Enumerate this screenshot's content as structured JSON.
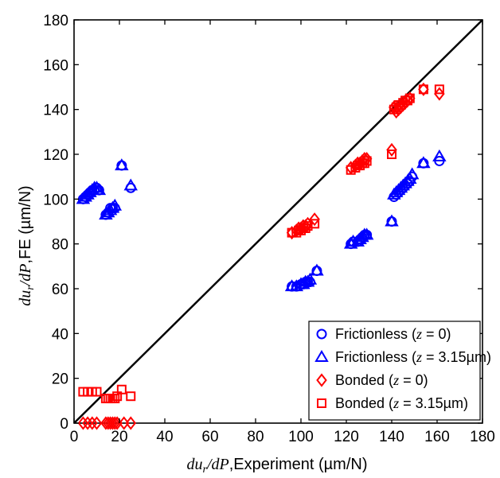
{
  "chart_data": {
    "type": "scatter",
    "xlabel": "duᵣ/dP,Experiment (µm/N)",
    "ylabel": "duᵣ/dP,FE (µm/N)",
    "xlim": [
      0,
      180
    ],
    "ylim": [
      0,
      180
    ],
    "xticks": [
      0,
      20,
      40,
      60,
      80,
      100,
      120,
      140,
      160,
      180
    ],
    "yticks": [
      0,
      20,
      40,
      60,
      80,
      100,
      120,
      140,
      160,
      180
    ],
    "grid": false,
    "legend_position": "bottom-right",
    "reference_line": {
      "x": [
        0,
        180
      ],
      "y": [
        0,
        180
      ],
      "color": "#000000"
    },
    "series": [
      {
        "name": "Frictionless (z = 0)",
        "marker": "circle",
        "color": "#0000ff",
        "points": [
          [
            4,
            100
          ],
          [
            5,
            101
          ],
          [
            6,
            102
          ],
          [
            7,
            103
          ],
          [
            8,
            104
          ],
          [
            9,
            104
          ],
          [
            10,
            105
          ],
          [
            11,
            104
          ],
          [
            14,
            93
          ],
          [
            15,
            94
          ],
          [
            16,
            96
          ],
          [
            17,
            96
          ],
          [
            18,
            96
          ],
          [
            21,
            115
          ],
          [
            25,
            105
          ],
          [
            96,
            61
          ],
          [
            98,
            61
          ],
          [
            100,
            62
          ],
          [
            101,
            62
          ],
          [
            102,
            63
          ],
          [
            103,
            63
          ],
          [
            104,
            63
          ],
          [
            107,
            68
          ],
          [
            122,
            80
          ],
          [
            123,
            81
          ],
          [
            125,
            81
          ],
          [
            126,
            82
          ],
          [
            127,
            83
          ],
          [
            128,
            84
          ],
          [
            129,
            84
          ],
          [
            140,
            90
          ],
          [
            141,
            101
          ],
          [
            142,
            102
          ],
          [
            143,
            103
          ],
          [
            144,
            104
          ],
          [
            145,
            105
          ],
          [
            146,
            106
          ],
          [
            147,
            107
          ],
          [
            148,
            108
          ],
          [
            149,
            110
          ],
          [
            154,
            116
          ],
          [
            161,
            117
          ]
        ]
      },
      {
        "name": "Frictionless (z = 3.15µm)",
        "marker": "triangle",
        "color": "#0000ff",
        "points": [
          [
            4,
            100
          ],
          [
            5,
            101
          ],
          [
            6,
            102
          ],
          [
            7,
            103
          ],
          [
            8,
            104
          ],
          [
            9,
            105
          ],
          [
            10,
            105
          ],
          [
            11,
            104
          ],
          [
            14,
            93
          ],
          [
            15,
            94
          ],
          [
            16,
            95
          ],
          [
            17,
            96
          ],
          [
            18,
            97
          ],
          [
            21,
            115
          ],
          [
            25,
            106
          ],
          [
            96,
            61
          ],
          [
            98,
            61
          ],
          [
            100,
            62
          ],
          [
            101,
            62
          ],
          [
            102,
            63
          ],
          [
            103,
            63
          ],
          [
            104,
            64
          ],
          [
            107,
            68
          ],
          [
            122,
            80
          ],
          [
            123,
            81
          ],
          [
            125,
            81
          ],
          [
            126,
            82
          ],
          [
            127,
            83
          ],
          [
            128,
            84
          ],
          [
            129,
            84
          ],
          [
            140,
            90
          ],
          [
            141,
            102
          ],
          [
            142,
            103
          ],
          [
            143,
            104
          ],
          [
            144,
            105
          ],
          [
            145,
            106
          ],
          [
            146,
            107
          ],
          [
            147,
            108
          ],
          [
            148,
            109
          ],
          [
            149,
            111
          ],
          [
            154,
            116
          ],
          [
            161,
            119
          ]
        ]
      },
      {
        "name": "Bonded (z = 0)",
        "marker": "diamond",
        "color": "#ff0000",
        "points": [
          [
            4,
            0
          ],
          [
            6,
            0
          ],
          [
            8,
            0
          ],
          [
            10,
            0
          ],
          [
            14,
            0
          ],
          [
            15,
            0
          ],
          [
            16,
            0
          ],
          [
            17,
            0
          ],
          [
            18,
            0
          ],
          [
            19,
            0
          ],
          [
            22,
            0
          ],
          [
            25,
            0
          ],
          [
            96,
            85
          ],
          [
            98,
            86
          ],
          [
            99,
            87
          ],
          [
            100,
            87
          ],
          [
            101,
            88
          ],
          [
            102,
            88
          ],
          [
            103,
            89
          ],
          [
            106,
            91
          ],
          [
            122,
            114
          ],
          [
            124,
            115
          ],
          [
            125,
            116
          ],
          [
            126,
            116
          ],
          [
            127,
            117
          ],
          [
            128,
            118
          ],
          [
            129,
            118
          ],
          [
            140,
            122
          ],
          [
            141,
            141
          ],
          [
            142,
            139
          ],
          [
            143,
            140
          ],
          [
            144,
            141
          ],
          [
            145,
            142
          ],
          [
            146,
            143
          ],
          [
            147,
            144
          ],
          [
            148,
            145
          ],
          [
            154,
            149
          ],
          [
            161,
            147
          ]
        ]
      },
      {
        "name": "Bonded (z = 3.15µm)",
        "marker": "square",
        "color": "#ff0000",
        "points": [
          [
            4,
            14
          ],
          [
            6,
            14
          ],
          [
            8,
            14
          ],
          [
            10,
            14
          ],
          [
            14,
            11
          ],
          [
            15,
            11
          ],
          [
            16,
            11
          ],
          [
            17,
            11
          ],
          [
            18,
            11
          ],
          [
            19,
            12
          ],
          [
            21,
            15
          ],
          [
            25,
            12
          ],
          [
            96,
            85
          ],
          [
            98,
            85
          ],
          [
            99,
            86
          ],
          [
            100,
            86
          ],
          [
            101,
            87
          ],
          [
            102,
            87
          ],
          [
            103,
            88
          ],
          [
            106,
            89
          ],
          [
            122,
            113
          ],
          [
            124,
            114
          ],
          [
            125,
            115
          ],
          [
            126,
            115
          ],
          [
            127,
            116
          ],
          [
            128,
            116
          ],
          [
            129,
            117
          ],
          [
            140,
            120
          ],
          [
            141,
            140
          ],
          [
            142,
            141
          ],
          [
            143,
            142
          ],
          [
            144,
            142
          ],
          [
            145,
            143
          ],
          [
            146,
            144
          ],
          [
            147,
            144
          ],
          [
            148,
            145
          ],
          [
            154,
            149
          ],
          [
            161,
            149
          ]
        ]
      }
    ],
    "legend": {
      "entries": [
        {
          "marker": "circle",
          "color": "#0000ff",
          "prefix": "Frictionless (",
          "var": "z",
          "suffix": " = 0)"
        },
        {
          "marker": "triangle",
          "color": "#0000ff",
          "prefix": "Frictionless (",
          "var": "z",
          "suffix": " = 3.15µm)"
        },
        {
          "marker": "diamond",
          "color": "#ff0000",
          "prefix": "Bonded (",
          "var": "z",
          "suffix": " = 0)"
        },
        {
          "marker": "square",
          "color": "#ff0000",
          "prefix": "Bonded (",
          "var": "z",
          "suffix": " = 3.15µm)"
        }
      ]
    }
  }
}
